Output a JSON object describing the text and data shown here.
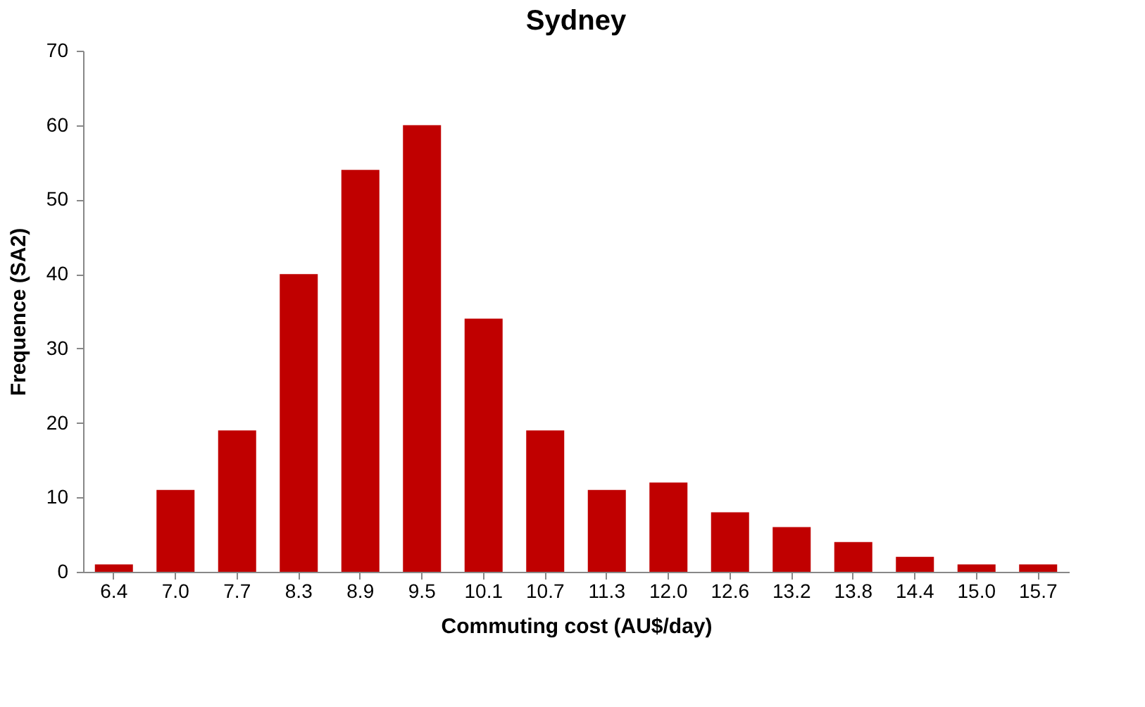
{
  "chart_data": {
    "type": "bar",
    "title": "Sydney",
    "xlabel": "Commuting cost (AU$/day)",
    "ylabel": "Frequence (SA2)",
    "categories": [
      "6.4",
      "7.0",
      "7.7",
      "8.3",
      "8.9",
      "9.5",
      "10.1",
      "10.7",
      "11.3",
      "12.0",
      "12.6",
      "13.2",
      "13.8",
      "14.4",
      "15.0",
      "15.7"
    ],
    "values": [
      1,
      11,
      19,
      40,
      54,
      60,
      34,
      19,
      11,
      12,
      8,
      6,
      4,
      2,
      1,
      1
    ],
    "color": "#c00000",
    "ylim": [
      0,
      70
    ],
    "yticks": [
      0,
      10,
      20,
      30,
      40,
      50,
      60,
      70
    ],
    "grid": false
  }
}
